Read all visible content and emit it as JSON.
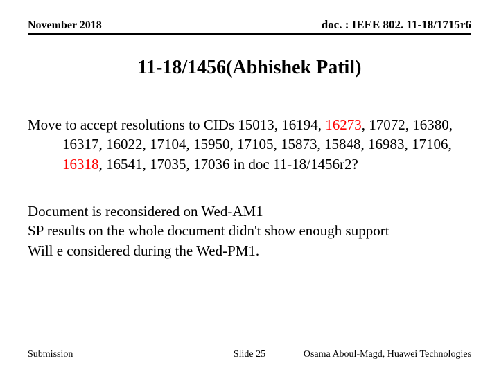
{
  "header": {
    "date": "November 2018",
    "docref": "doc. : IEEE 802. 11-18/1715r6"
  },
  "title": "11-18/1456(Abhishek Patil)",
  "body": {
    "motion_prefix": "Move to accept resolutions to CIDs 15013, 16194, ",
    "motion_red1": "16273",
    "motion_mid": ", 17072, 16380, 16317, 16022, 17104, 15950, 17105, 15873, 15848, 16983, 17106, ",
    "motion_red2": "16318",
    "motion_suffix": ", 16541, 17035, 17036 in doc 11-18/1456r2?",
    "line1": "Document is reconsidered on Wed-AM1",
    "line2": "SP results on the whole document didn't show enough support",
    "line3": "Will e considered during the Wed-PM1."
  },
  "footer": {
    "left": "Submission",
    "center": "Slide 25",
    "right": "Osama Aboul-Magd, Huawei Technologies"
  },
  "colors": {
    "background": "#ffffff",
    "text": "#000000",
    "highlight": "#ff0000"
  }
}
